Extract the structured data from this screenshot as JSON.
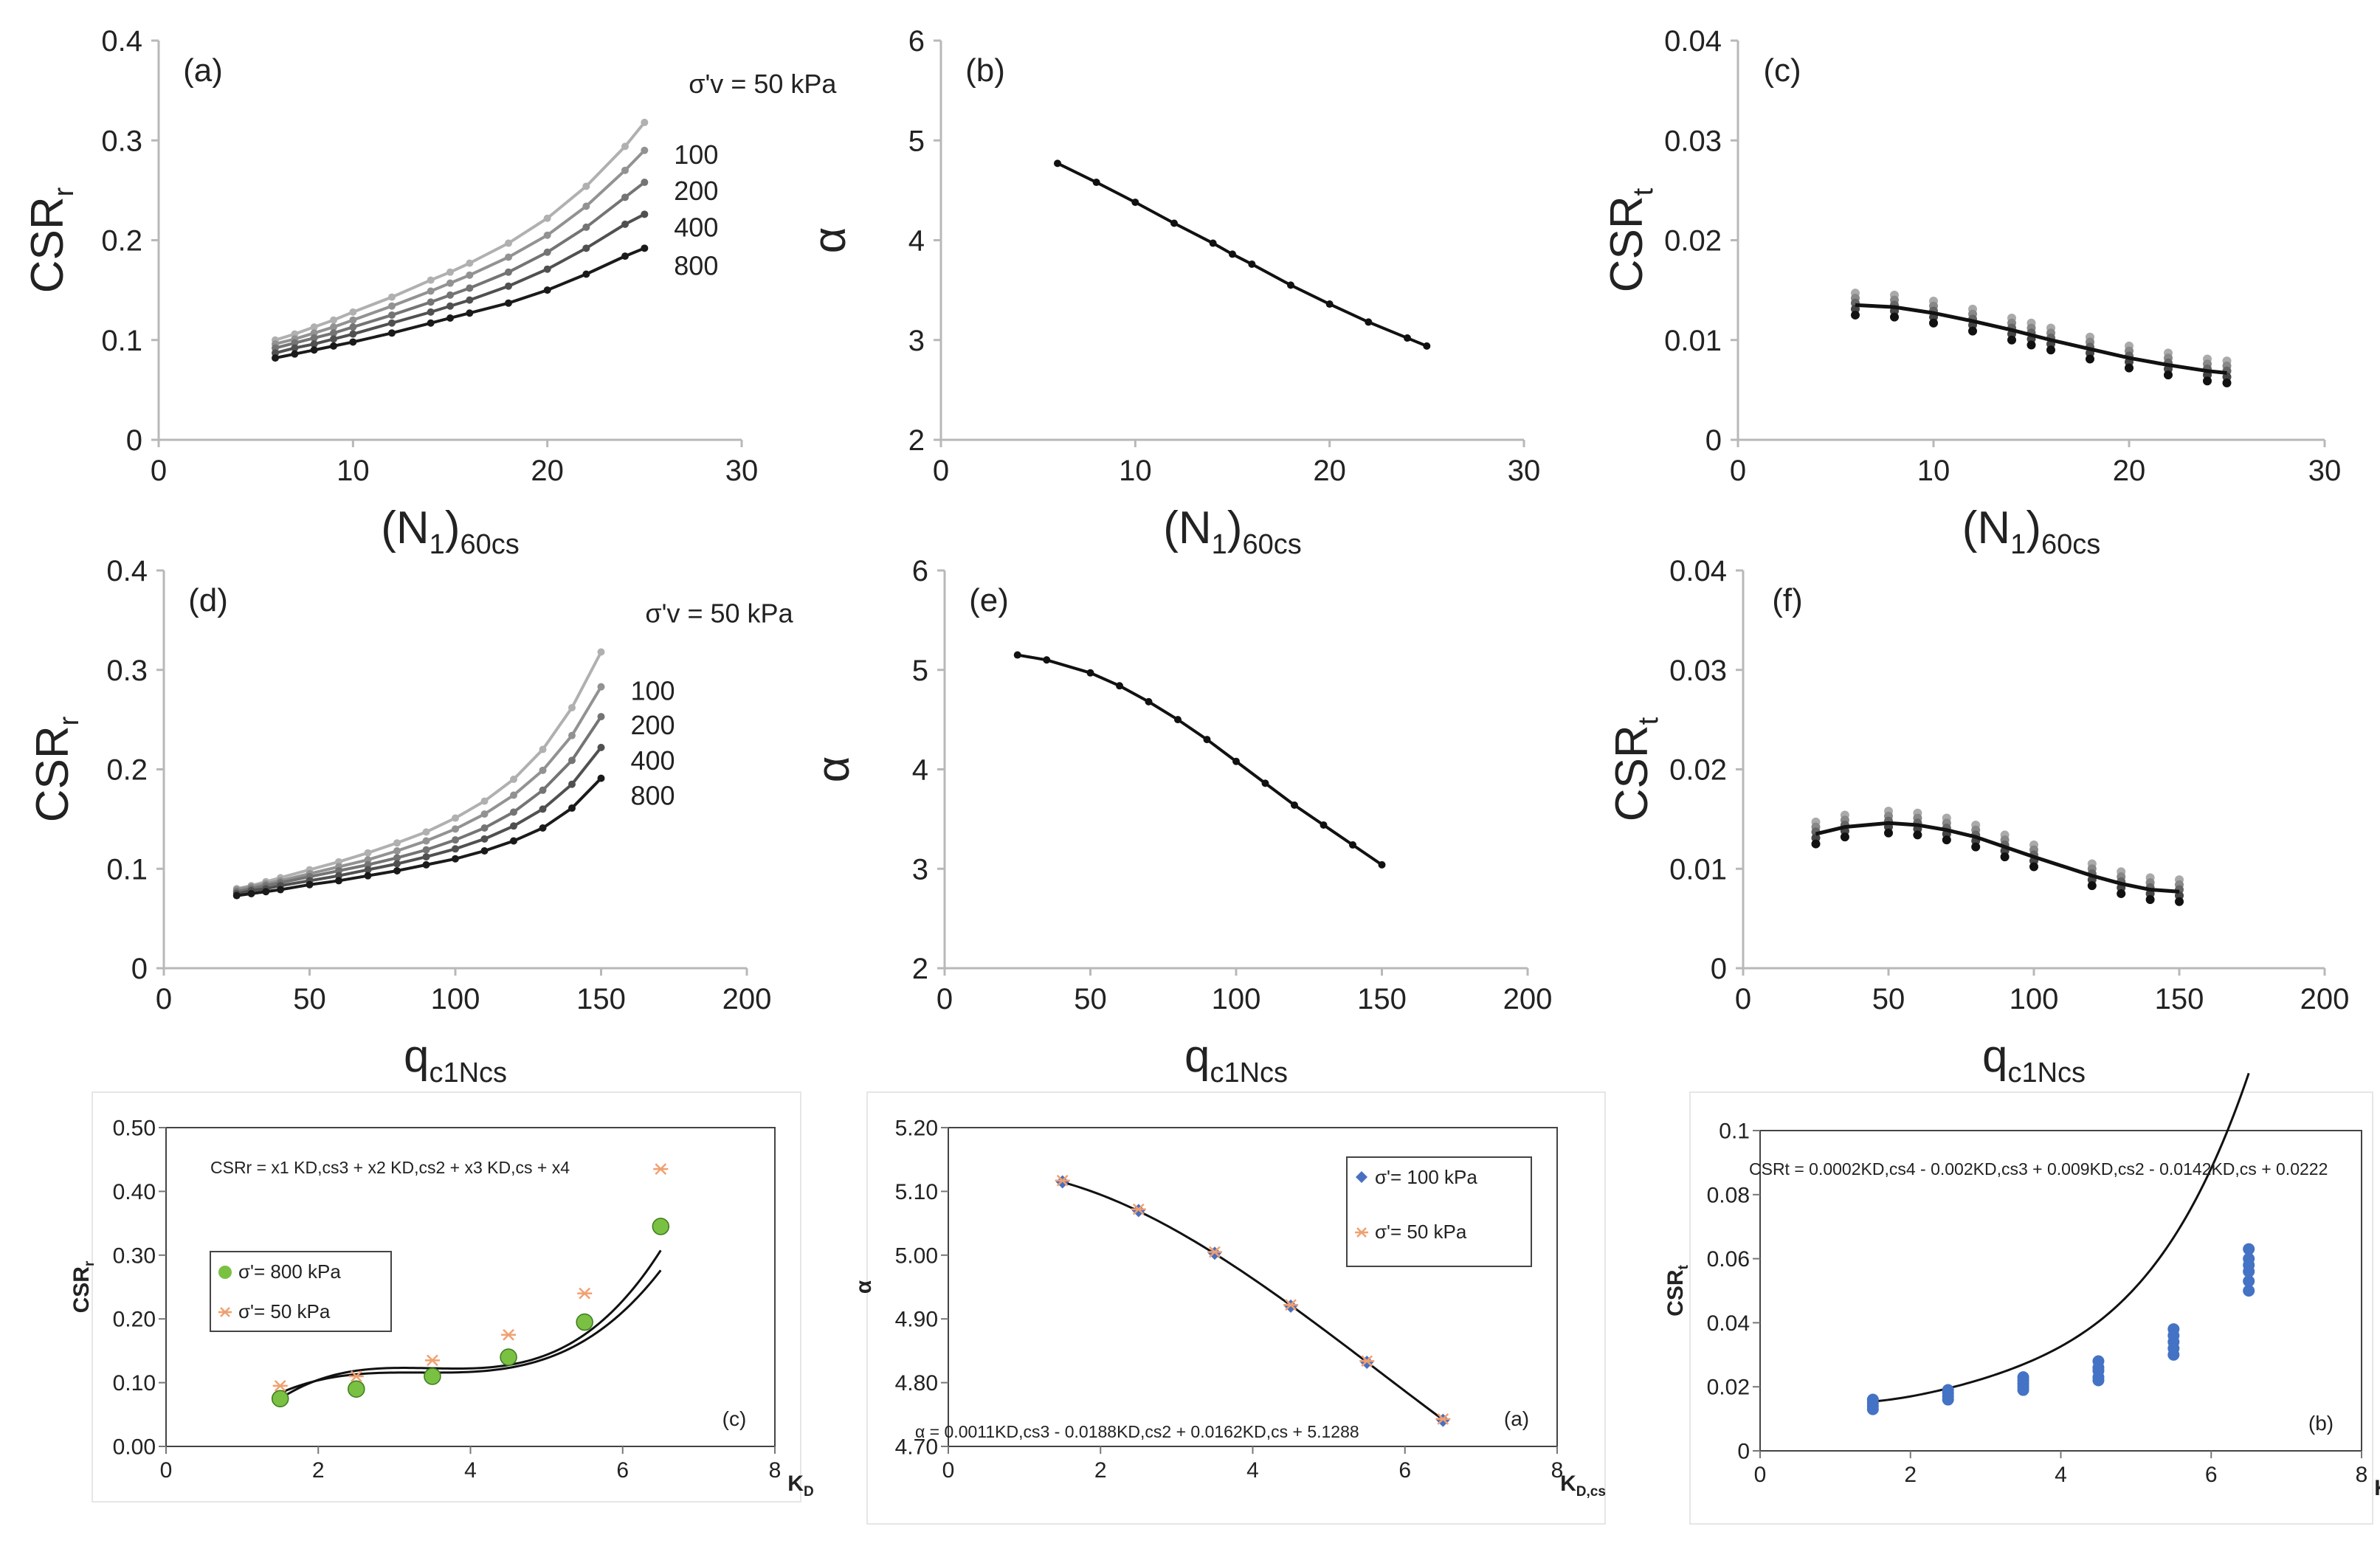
{
  "figure": "nine-panel liquefaction chart",
  "chart_data": [
    {
      "id": "a",
      "type": "line",
      "panel_label": "(a)",
      "ylabel": "CSR",
      "ylabel_sub": "r",
      "xlabel": "(N",
      "xlabel_sub1": "1",
      "xlabel_mid": ")",
      "xlabel_sub2": "60cs",
      "xlim": [
        0,
        30
      ],
      "ylim": [
        0,
        0.4
      ],
      "xticks": [
        0,
        10,
        20,
        30
      ],
      "yticks": [
        0,
        0.1,
        0.2,
        0.3,
        0.4
      ],
      "xtick_labels": [
        "0",
        "10",
        "20",
        "30"
      ],
      "ytick_labels": [
        "0",
        "0.1",
        "0.2",
        "0.3",
        "0.4"
      ],
      "x": [
        6,
        7,
        8,
        9,
        10,
        12,
        14,
        15,
        16,
        18,
        20,
        22,
        24,
        25
      ],
      "series": [
        {
          "name": "σ'v = 50 kPa",
          "color": "#b0b0b0",
          "values": [
            0.1,
            0.106,
            0.113,
            0.12,
            0.128,
            0.143,
            0.16,
            0.168,
            0.177,
            0.197,
            0.222,
            0.254,
            0.294,
            0.318
          ]
        },
        {
          "name": "100",
          "color": "#929292",
          "values": [
            0.096,
            0.101,
            0.107,
            0.113,
            0.12,
            0.134,
            0.149,
            0.157,
            0.165,
            0.183,
            0.205,
            0.234,
            0.27,
            0.29
          ]
        },
        {
          "name": "200",
          "color": "#747474",
          "values": [
            0.092,
            0.097,
            0.102,
            0.107,
            0.113,
            0.125,
            0.138,
            0.145,
            0.152,
            0.168,
            0.188,
            0.213,
            0.243,
            0.258
          ]
        },
        {
          "name": "400",
          "color": "#505050",
          "values": [
            0.087,
            0.092,
            0.096,
            0.101,
            0.106,
            0.117,
            0.128,
            0.134,
            0.14,
            0.154,
            0.171,
            0.192,
            0.216,
            0.226
          ]
        },
        {
          "name": "800",
          "color": "#1a1a1a",
          "values": [
            0.082,
            0.086,
            0.09,
            0.094,
            0.098,
            0.107,
            0.117,
            0.122,
            0.127,
            0.137,
            0.15,
            0.166,
            0.184,
            0.192
          ]
        }
      ],
      "annotations": [
        "σ'v = 50 kPa",
        "100",
        "200",
        "400",
        "800"
      ]
    },
    {
      "id": "b",
      "type": "line",
      "panel_label": "(b)",
      "ylabel": "α",
      "ylabel_sub": "",
      "xlabel": "(N",
      "xlabel_sub1": "1",
      "xlabel_mid": ")",
      "xlabel_sub2": "60cs",
      "xlim": [
        0,
        30
      ],
      "ylim": [
        2,
        6
      ],
      "xticks": [
        0,
        10,
        20,
        30
      ],
      "yticks": [
        2,
        3,
        4,
        5,
        6
      ],
      "xtick_labels": [
        "0",
        "10",
        "20",
        "30"
      ],
      "ytick_labels": [
        "2",
        "3",
        "4",
        "5",
        "6"
      ],
      "x": [
        6,
        8,
        10,
        12,
        14,
        15,
        16,
        18,
        20,
        22,
        24,
        25
      ],
      "series": [
        {
          "name": "α",
          "color": "#111111",
          "values": [
            4.77,
            4.58,
            4.38,
            4.17,
            3.97,
            3.86,
            3.76,
            3.55,
            3.36,
            3.18,
            3.02,
            2.94
          ]
        }
      ]
    },
    {
      "id": "c",
      "type": "scatter",
      "panel_label": "(c)",
      "ylabel": "CSR",
      "ylabel_sub": "t",
      "xlabel": "(N",
      "xlabel_sub1": "1",
      "xlabel_mid": ")",
      "xlabel_sub2": "60cs",
      "xlim": [
        0,
        30
      ],
      "ylim": [
        0,
        0.04
      ],
      "xticks": [
        0,
        10,
        20,
        30
      ],
      "yticks": [
        0,
        0.01,
        0.02,
        0.03,
        0.04
      ],
      "xtick_labels": [
        "0",
        "10",
        "20",
        "30"
      ],
      "ytick_labels": [
        "0",
        "0.01",
        "0.02",
        "0.03",
        "0.04"
      ],
      "x": [
        6,
        8,
        10,
        12,
        14,
        15,
        16,
        18,
        20,
        22,
        24,
        25
      ],
      "fit": [
        0.0135,
        0.0133,
        0.0127,
        0.0119,
        0.011,
        0.0105,
        0.01,
        0.0091,
        0.0082,
        0.0075,
        0.0069,
        0.0067
      ],
      "spread": [
        0.0012,
        0.0007,
        0.0002,
        -0.0004,
        -0.001
      ],
      "point_colors": [
        "#aaaaaa",
        "#888888",
        "#666666",
        "#444444",
        "#111111"
      ]
    },
    {
      "id": "d",
      "type": "line",
      "panel_label": "(d)",
      "ylabel": "CSR",
      "ylabel_sub": "r",
      "xlabel": "q",
      "xlabel_sub1": "c1Ncs",
      "xlabel_mid": "",
      "xlabel_sub2": "",
      "xlim": [
        0,
        200
      ],
      "ylim": [
        0,
        0.4
      ],
      "xticks": [
        0,
        50,
        100,
        150,
        200
      ],
      "yticks": [
        0,
        0.1,
        0.2,
        0.3,
        0.4
      ],
      "xtick_labels": [
        "0",
        "50",
        "100",
        "150",
        "200"
      ],
      "ytick_labels": [
        "0",
        "0.1",
        "0.2",
        "0.3",
        "0.4"
      ],
      "x": [
        25,
        30,
        35,
        40,
        50,
        60,
        70,
        80,
        90,
        100,
        110,
        120,
        130,
        140,
        150
      ],
      "series": [
        {
          "name": "σ'v = 50 kPa",
          "color": "#b0b0b0",
          "values": [
            0.08,
            0.083,
            0.087,
            0.091,
            0.099,
            0.107,
            0.116,
            0.126,
            0.137,
            0.151,
            0.168,
            0.19,
            0.22,
            0.262,
            0.318
          ]
        },
        {
          "name": "100",
          "color": "#929292",
          "values": [
            0.079,
            0.082,
            0.085,
            0.088,
            0.095,
            0.102,
            0.109,
            0.118,
            0.128,
            0.14,
            0.155,
            0.174,
            0.199,
            0.234,
            0.283
          ]
        },
        {
          "name": "200",
          "color": "#747474",
          "values": [
            0.077,
            0.08,
            0.083,
            0.086,
            0.092,
            0.098,
            0.104,
            0.111,
            0.119,
            0.129,
            0.141,
            0.157,
            0.179,
            0.209,
            0.253
          ]
        },
        {
          "name": "400",
          "color": "#505050",
          "values": [
            0.075,
            0.078,
            0.08,
            0.083,
            0.088,
            0.093,
            0.099,
            0.105,
            0.112,
            0.12,
            0.13,
            0.143,
            0.16,
            0.185,
            0.222
          ]
        },
        {
          "name": "800",
          "color": "#1a1a1a",
          "values": [
            0.073,
            0.075,
            0.077,
            0.079,
            0.084,
            0.088,
            0.093,
            0.098,
            0.104,
            0.11,
            0.118,
            0.128,
            0.141,
            0.161,
            0.191
          ]
        }
      ],
      "annotations": [
        "σ'v = 50 kPa",
        "100",
        "200",
        "400",
        "800"
      ]
    },
    {
      "id": "e",
      "type": "line",
      "panel_label": "(e)",
      "ylabel": "α",
      "ylabel_sub": "",
      "xlabel": "q",
      "xlabel_sub1": "c1Ncs",
      "xlabel_mid": "",
      "xlabel_sub2": "",
      "xlim": [
        0,
        200
      ],
      "ylim": [
        2,
        6
      ],
      "xticks": [
        0,
        50,
        100,
        150,
        200
      ],
      "yticks": [
        2,
        3,
        4,
        5,
        6
      ],
      "xtick_labels": [
        "0",
        "50",
        "100",
        "150",
        "200"
      ],
      "ytick_labels": [
        "2",
        "3",
        "4",
        "5",
        "6"
      ],
      "x": [
        25,
        35,
        50,
        60,
        70,
        80,
        90,
        100,
        110,
        120,
        130,
        140,
        150
      ],
      "series": [
        {
          "name": "α",
          "color": "#111111",
          "values": [
            5.15,
            5.1,
            4.97,
            4.84,
            4.68,
            4.5,
            4.3,
            4.08,
            3.86,
            3.64,
            3.44,
            3.24,
            3.04
          ]
        }
      ]
    },
    {
      "id": "f",
      "type": "scatter",
      "panel_label": "(f)",
      "ylabel": "CSR",
      "ylabel_sub": "t",
      "xlabel": "q",
      "xlabel_sub1": "c1Ncs",
      "xlabel_mid": "",
      "xlabel_sub2": "",
      "xlim": [
        0,
        200
      ],
      "ylim": [
        0,
        0.04
      ],
      "xticks": [
        0,
        50,
        100,
        150,
        200
      ],
      "yticks": [
        0,
        0.01,
        0.02,
        0.03,
        0.04
      ],
      "xtick_labels": [
        "0",
        "50",
        "100",
        "150",
        "200"
      ],
      "ytick_labels": [
        "0",
        "0.01",
        "0.02",
        "0.03",
        "0.04"
      ],
      "x": [
        25,
        35,
        50,
        60,
        70,
        80,
        90,
        100,
        120,
        130,
        140,
        150
      ],
      "fit": [
        0.0135,
        0.0142,
        0.0146,
        0.0144,
        0.0139,
        0.0132,
        0.0122,
        0.0112,
        0.0093,
        0.0085,
        0.0079,
        0.0077
      ],
      "spread": [
        0.0012,
        0.0007,
        0.0002,
        -0.0004,
        -0.001
      ],
      "point_colors": [
        "#aaaaaa",
        "#888888",
        "#666666",
        "#444444",
        "#111111"
      ]
    },
    {
      "id": "g",
      "type": "scatter",
      "panel_label": "(c)",
      "ylabel": "CSR",
      "ylabel_sub": "r",
      "xlabel": "K",
      "xlabel_sub1": "D",
      "xlabel_mid": "",
      "xlabel_sub2": "",
      "xlim": [
        0,
        8
      ],
      "ylim": [
        0,
        0.5
      ],
      "xticks": [
        0,
        2,
        4,
        6,
        8
      ],
      "yticks": [
        0,
        0.1,
        0.2,
        0.3,
        0.4,
        0.5
      ],
      "xtick_labels": [
        "0",
        "2",
        "4",
        "6",
        "8"
      ],
      "ytick_labels": [
        "0.00",
        "0.10",
        "0.20",
        "0.30",
        "0.40",
        "0.50"
      ],
      "equation": "CSRr = x1 KD,cs3 + x2 KD,cs2 + x3 KD,cs + x4",
      "series": [
        {
          "name": "σ'= 800 kPa",
          "marker": "circle",
          "color": "#7ac143",
          "x": [
            1.5,
            2.5,
            3.5,
            4.5,
            5.5,
            6.5
          ],
          "values": [
            0.075,
            0.09,
            0.11,
            0.14,
            0.195,
            0.345
          ]
        },
        {
          "name": "σ'= 50 kPa",
          "marker": "star",
          "color": "#f0a070",
          "x": [
            1.5,
            2.5,
            3.5,
            4.5,
            5.5,
            6.5
          ],
          "values": [
            0.095,
            0.11,
            0.135,
            0.175,
            0.24,
            0.435
          ]
        }
      ],
      "fits": [
        {
          "coeffs": [
            0.0052,
            -0.0523,
            0.1748,
            -0.0783
          ],
          "x0": 1.5,
          "x1": 6.5
        },
        {
          "coeffs": [
            0.0069,
            -0.0718,
            0.2466,
            -0.1568
          ],
          "x0": 1.5,
          "x1": 6.5
        }
      ]
    },
    {
      "id": "h",
      "type": "scatter",
      "panel_label": "(a)",
      "ylabel": "α",
      "ylabel_sub": "",
      "xlabel": "K",
      "xlabel_sub1": "D,cs",
      "xlabel_mid": "",
      "xlabel_sub2": "",
      "xlim": [
        0,
        8
      ],
      "ylim": [
        4.7,
        5.2
      ],
      "xticks": [
        0,
        2,
        4,
        6,
        8
      ],
      "yticks": [
        4.7,
        4.8,
        4.9,
        5.0,
        5.1,
        5.2
      ],
      "xtick_labels": [
        "0",
        "2",
        "4",
        "6",
        "8"
      ],
      "ytick_labels": [
        "4.70",
        "4.80",
        "4.90",
        "5.00",
        "5.10",
        "5.20"
      ],
      "equation": "α = 0.0011KD,cs3 - 0.0188KD,cs2 + 0.0162KD,cs + 5.1288",
      "series": [
        {
          "name": "σ'= 100 kPa",
          "marker": "diamond",
          "color": "#4a6fc0",
          "x": [
            1.5,
            2.5,
            3.5,
            4.5,
            5.5,
            6.5
          ],
          "values": [
            5.115,
            5.07,
            5.003,
            4.92,
            4.832,
            4.741
          ]
        },
        {
          "name": "σ'= 50 kPa",
          "marker": "star",
          "color": "#f0a070",
          "x": [
            1.5,
            2.5,
            3.5,
            4.5,
            5.5,
            6.5
          ],
          "values": [
            5.117,
            5.072,
            5.005,
            4.922,
            4.834,
            4.743
          ]
        }
      ],
      "fits": [
        {
          "coeffs": [
            0.0011,
            -0.0188,
            0.0162,
            5.1288
          ],
          "x0": 1.5,
          "x1": 6.5
        }
      ]
    },
    {
      "id": "i",
      "type": "scatter",
      "panel_label": "(b)",
      "ylabel": "CSR",
      "ylabel_sub": "t",
      "xlabel": "K",
      "xlabel_sub1": "D",
      "xlabel_mid": "",
      "xlabel_sub2": "",
      "xlim": [
        0,
        8
      ],
      "ylim": [
        0,
        0.1
      ],
      "xticks": [
        0,
        2,
        4,
        6,
        8
      ],
      "yticks": [
        0,
        0.02,
        0.04,
        0.06,
        0.08,
        0.1
      ],
      "xtick_labels": [
        "0",
        "2",
        "4",
        "6",
        "8"
      ],
      "ytick_labels": [
        "0",
        "0.02",
        "0.04",
        "0.06",
        "0.08",
        "0.1"
      ],
      "equation": "CSRt = 0.0002KD,cs4 - 0.002KD,cs3 + 0.009KD,cs2 - 0.0142KD,cs + 0.0222",
      "series": [
        {
          "name": "CSRt",
          "marker": "circle",
          "color": "#4472c4",
          "x": [
            1.5,
            1.5,
            1.5,
            1.5,
            2.5,
            2.5,
            2.5,
            2.5,
            3.5,
            3.5,
            3.5,
            3.5,
            3.5,
            4.5,
            4.5,
            4.5,
            4.5,
            4.5,
            5.5,
            5.5,
            5.5,
            5.5,
            5.5,
            6.5,
            6.5,
            6.5,
            6.5,
            6.5,
            6.5
          ],
          "values": [
            0.013,
            0.014,
            0.015,
            0.016,
            0.016,
            0.017,
            0.018,
            0.019,
            0.019,
            0.02,
            0.021,
            0.022,
            0.023,
            0.022,
            0.023,
            0.025,
            0.026,
            0.028,
            0.03,
            0.032,
            0.034,
            0.036,
            0.038,
            0.05,
            0.053,
            0.056,
            0.058,
            0.06,
            0.063
          ]
        }
      ],
      "fits": [
        {
          "coeffs4": [
            0.0002,
            -0.002,
            0.009,
            -0.0142,
            0.0222
          ],
          "x0": 1.5,
          "x1": 6.5
        }
      ]
    }
  ]
}
